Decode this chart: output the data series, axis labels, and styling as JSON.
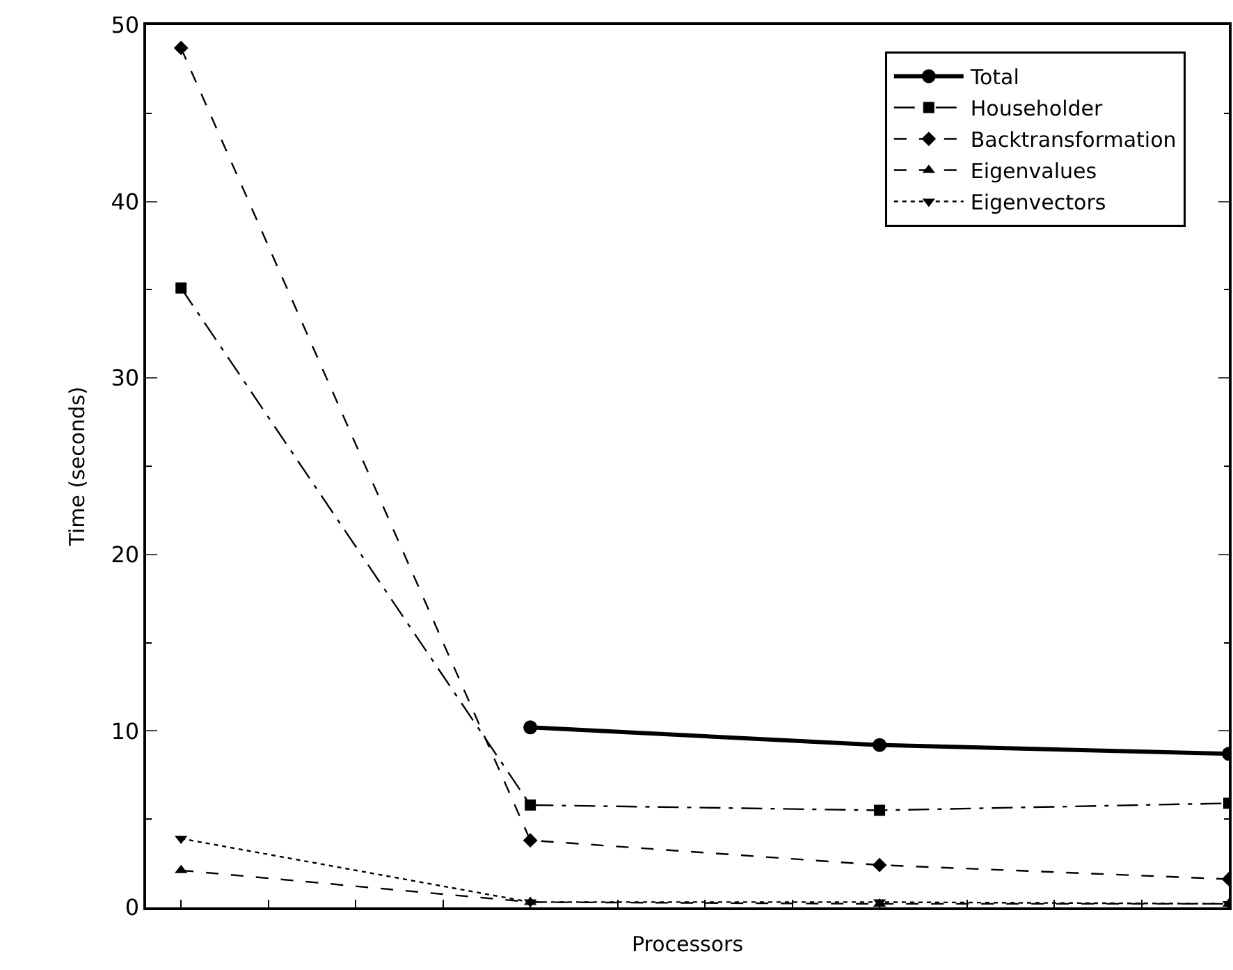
{
  "chart_data": {
    "type": "line",
    "xlabel": "Processors",
    "ylabel": "Time (seconds)",
    "categories": [
      null,
      null,
      null,
      null
    ],
    "ylim": [
      0,
      50
    ],
    "yticks": [
      0,
      10,
      20,
      30,
      40,
      50
    ],
    "legend": "top right",
    "tick_labels": "y",
    "series": [
      {
        "name": "Total",
        "color": "#000000",
        "values": [
          null,
          10.2,
          9.2,
          8.7
        ],
        "marker": "circle",
        "line_style": "solid"
      },
      {
        "name": "Householder",
        "color": "#000000",
        "values": [
          35.1,
          5.8,
          5.5,
          5.9
        ],
        "marker": "square",
        "line_style": "dashdot"
      },
      {
        "name": "Backtransformation",
        "color": "#000000",
        "values": [
          48.7,
          3.8,
          2.4,
          1.6
        ],
        "marker": "diamond",
        "line_style": "dashed"
      },
      {
        "name": "Eigenvalues",
        "color": "#000000",
        "values": [
          2.1,
          0.3,
          0.2,
          0.2
        ],
        "marker": "triangle",
        "line_style": "dashed"
      },
      {
        "name": "Eigenvectors",
        "color": "#000000",
        "values": [
          3.9,
          0.3,
          0.3,
          0.2
        ],
        "marker": "triangle-down",
        "line_style": "dotted"
      }
    ]
  }
}
